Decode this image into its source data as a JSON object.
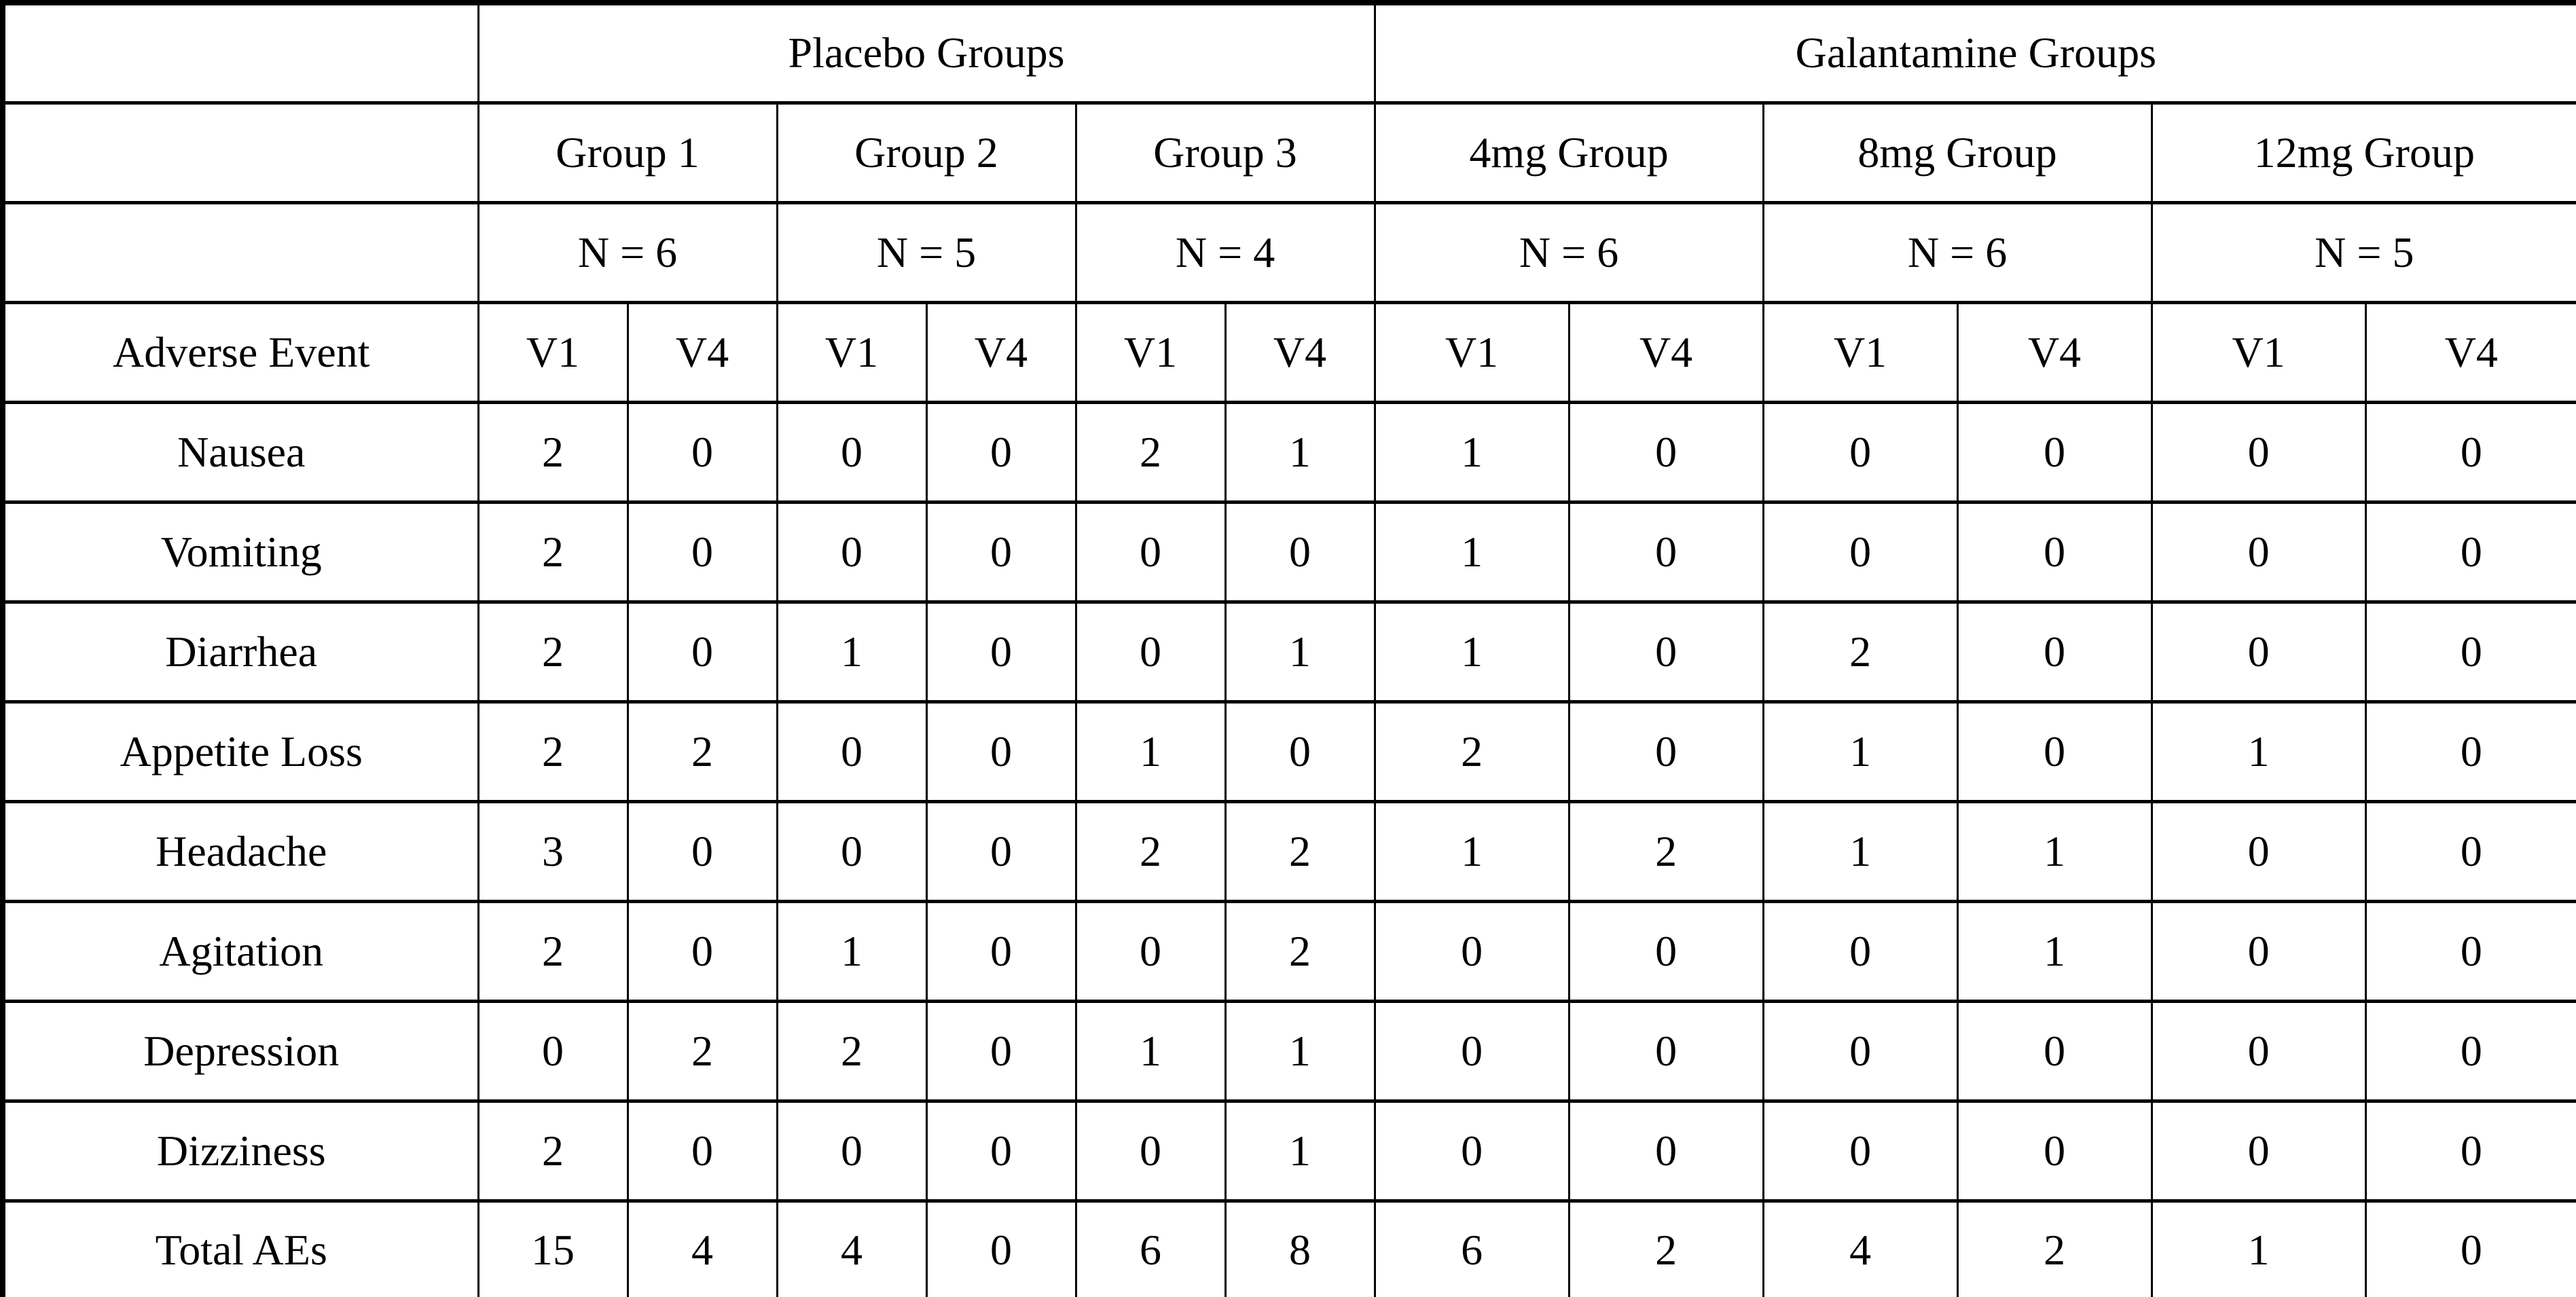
{
  "chart_data": {
    "type": "table",
    "row_header": "Adverse Event",
    "visit_labels": [
      "V1",
      "V4"
    ],
    "column_groups": [
      {
        "label": "Placebo Groups",
        "subgroups": [
          {
            "label": "Group 1",
            "n": "N = 6"
          },
          {
            "label": "Group 2",
            "n": "N = 5"
          },
          {
            "label": "Group 3",
            "n": "N = 4"
          }
        ]
      },
      {
        "label": "Galantamine Groups",
        "subgroups": [
          {
            "label": "4mg Group",
            "n": "N = 6"
          },
          {
            "label": "8mg Group",
            "n": "N = 6"
          },
          {
            "label": "12mg Group",
            "n": "N = 5"
          }
        ]
      }
    ],
    "rows": [
      {
        "label": "Nausea",
        "values": [
          2,
          0,
          0,
          0,
          2,
          1,
          1,
          0,
          0,
          0,
          0,
          0
        ]
      },
      {
        "label": "Vomiting",
        "values": [
          2,
          0,
          0,
          0,
          0,
          0,
          1,
          0,
          0,
          0,
          0,
          0
        ]
      },
      {
        "label": "Diarrhea",
        "values": [
          2,
          0,
          1,
          0,
          0,
          1,
          1,
          0,
          2,
          0,
          0,
          0
        ]
      },
      {
        "label": "Appetite Loss",
        "values": [
          2,
          2,
          0,
          0,
          1,
          0,
          2,
          0,
          1,
          0,
          1,
          0
        ]
      },
      {
        "label": "Headache",
        "values": [
          3,
          0,
          0,
          0,
          2,
          2,
          1,
          2,
          1,
          1,
          0,
          0
        ]
      },
      {
        "label": "Agitation",
        "values": [
          2,
          0,
          1,
          0,
          0,
          2,
          0,
          0,
          0,
          1,
          0,
          0
        ]
      },
      {
        "label": "Depression",
        "values": [
          0,
          2,
          2,
          0,
          1,
          1,
          0,
          0,
          0,
          0,
          0,
          0
        ]
      },
      {
        "label": "Dizziness",
        "values": [
          2,
          0,
          0,
          0,
          0,
          1,
          0,
          0,
          0,
          0,
          0,
          0
        ]
      },
      {
        "label": "Total AEs",
        "values": [
          15,
          4,
          4,
          0,
          6,
          8,
          6,
          2,
          4,
          2,
          1,
          0
        ]
      }
    ],
    "colors": {
      "border": "#000000",
      "background": "#ffffff",
      "text": "#000000"
    }
  }
}
